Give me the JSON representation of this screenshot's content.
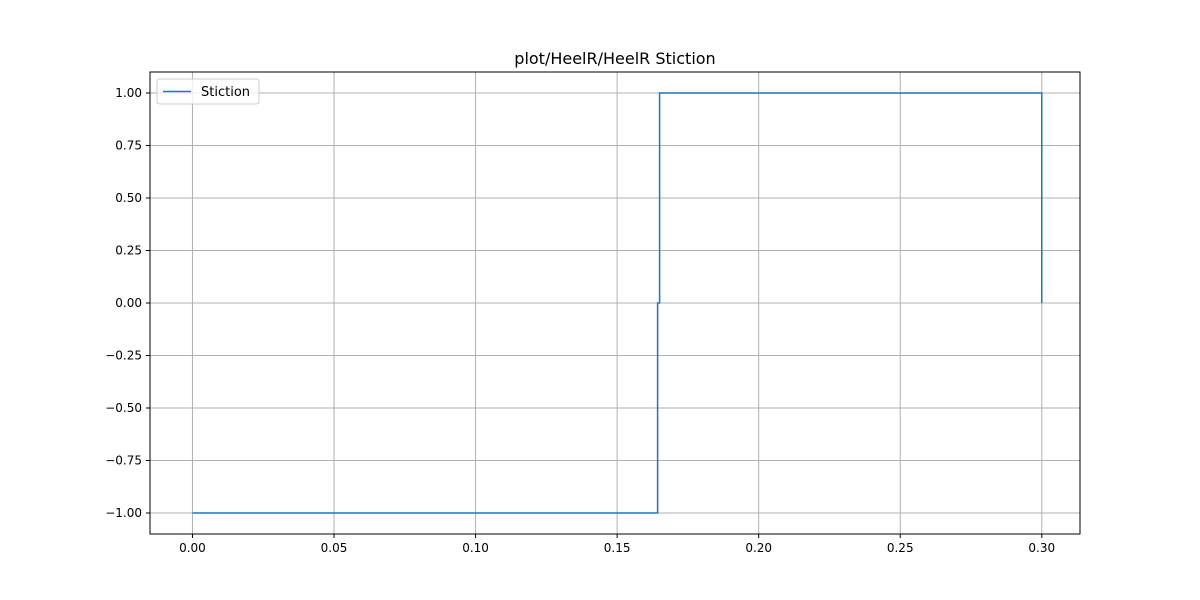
{
  "chart_data": {
    "type": "line",
    "title": "plot/HeelR/HeelR Stiction",
    "xlabel": "",
    "ylabel": "",
    "xlim": [
      -0.015,
      0.3135
    ],
    "ylim": [
      -1.1,
      1.1
    ],
    "x_ticks": [
      0.0,
      0.05,
      0.1,
      0.15,
      0.2,
      0.25,
      0.3
    ],
    "x_tick_labels": [
      "0.00",
      "0.05",
      "0.10",
      "0.15",
      "0.20",
      "0.25",
      "0.30"
    ],
    "y_ticks": [
      1.0,
      0.75,
      0.5,
      0.25,
      0.0,
      -0.25,
      -0.5,
      -0.75,
      -1.0
    ],
    "y_tick_labels": [
      "1.00",
      "0.75",
      "0.50",
      "0.25",
      "0.00",
      "−0.25",
      "−0.50",
      "−0.75",
      "−1.00"
    ],
    "grid": true,
    "legend_position": "top-left",
    "series": [
      {
        "name": "Stiction",
        "color": "#1f77b4",
        "x": [
          0.0,
          0.1643,
          0.1643,
          0.165,
          0.165,
          0.3,
          0.3
        ],
        "y": [
          -1.0,
          -1.0,
          0.0,
          0.0,
          1.0,
          1.0,
          0.0
        ]
      }
    ]
  }
}
